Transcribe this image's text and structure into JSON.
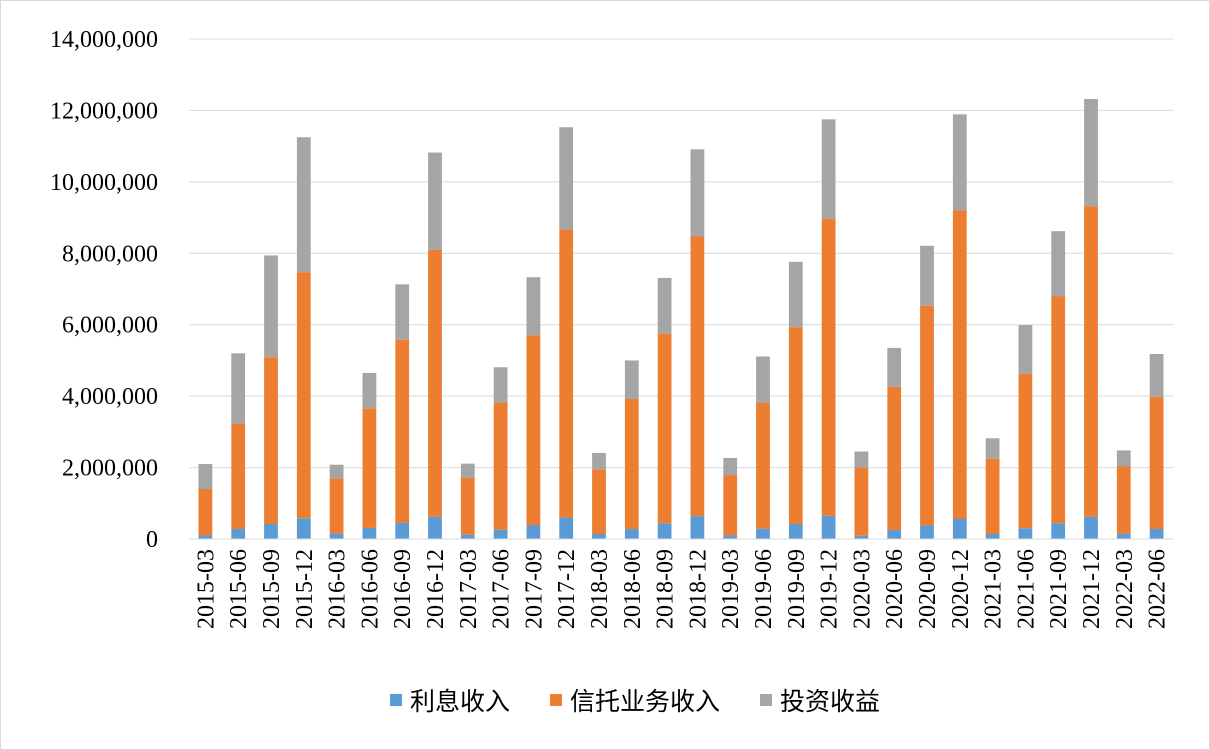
{
  "chart_data": {
    "type": "bar",
    "stacked": true,
    "title": "",
    "xlabel": "",
    "ylabel": "",
    "ylim": [
      0,
      14000000
    ],
    "yticks": [
      "0",
      "2,000,000",
      "4,000,000",
      "6,000,000",
      "8,000,000",
      "10,000,000",
      "12,000,000",
      "14,000,000"
    ],
    "grid": true,
    "legend": "bottom",
    "categories": [
      "2015-03",
      "2015-06",
      "2015-09",
      "2015-12",
      "2016-03",
      "2016-06",
      "2016-09",
      "2016-12",
      "2017-03",
      "2017-06",
      "2017-09",
      "2017-12",
      "2018-03",
      "2018-06",
      "2018-09",
      "2018-12",
      "2019-03",
      "2019-06",
      "2019-09",
      "2019-12",
      "2020-03",
      "2020-06",
      "2020-09",
      "2020-12",
      "2021-03",
      "2021-06",
      "2021-09",
      "2021-12",
      "2022-03",
      "2022-06"
    ],
    "series": [
      {
        "name": "利息收入",
        "color": "#5b9bd5",
        "values": [
          100000,
          280000,
          420000,
          580000,
          150000,
          310000,
          450000,
          620000,
          120000,
          260000,
          390000,
          600000,
          140000,
          280000,
          440000,
          640000,
          100000,
          290000,
          420000,
          650000,
          90000,
          250000,
          380000,
          560000,
          140000,
          300000,
          440000,
          620000,
          150000,
          280000
        ]
      },
      {
        "name": "信托业务收入",
        "color": "#ed7d31",
        "values": [
          1300000,
          2950000,
          4670000,
          6890000,
          1550000,
          3350000,
          5130000,
          7480000,
          1590000,
          3560000,
          5310000,
          8070000,
          1810000,
          3640000,
          5320000,
          7830000,
          1690000,
          3530000,
          5510000,
          8320000,
          1910000,
          4010000,
          6150000,
          8640000,
          2110000,
          4330000,
          6350000,
          8700000,
          1880000,
          3700000
        ]
      },
      {
        "name": "投资收益",
        "color": "#a5a5a5",
        "values": [
          700000,
          1970000,
          2850000,
          3780000,
          380000,
          990000,
          1550000,
          2720000,
          400000,
          990000,
          1630000,
          2860000,
          460000,
          1080000,
          1550000,
          2440000,
          480000,
          1290000,
          1830000,
          2780000,
          450000,
          1090000,
          1680000,
          2690000,
          570000,
          1360000,
          1830000,
          3000000,
          450000,
          1200000
        ]
      }
    ]
  }
}
